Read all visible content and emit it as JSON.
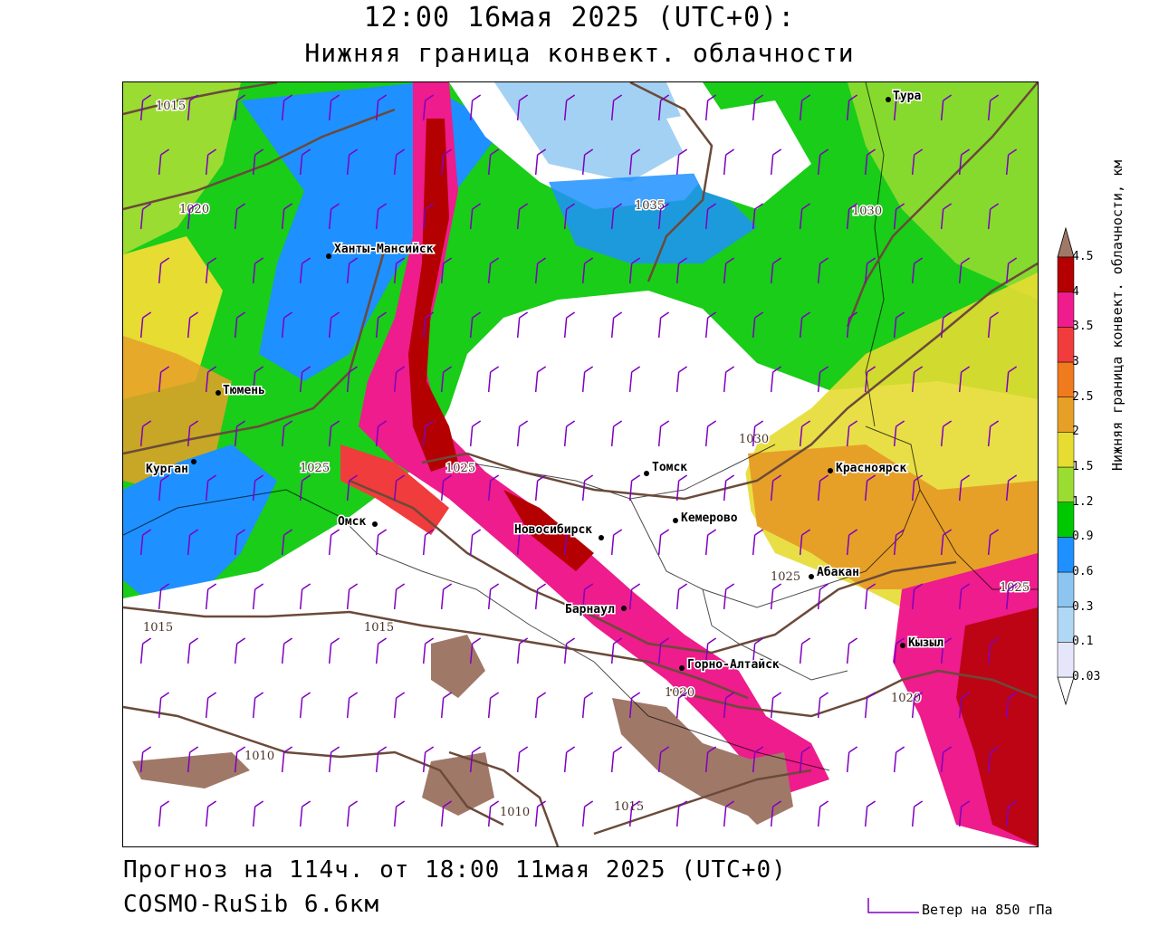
{
  "header": {
    "title": "12:00 16мая 2025 (UTC+0):",
    "subtitle": "Нижняя граница конвект. облачности"
  },
  "footer": {
    "forecast": "Прогноз на 114ч. от 18:00 11мая 2025 (UTC+0)",
    "model": "COSMO-RuSib 6.6км"
  },
  "legend": {
    "title": "Нижняя граница конвект. облачности, км",
    "levels": [
      "0.03",
      "0.1",
      "0.3",
      "0.6",
      "0.9",
      "1.2",
      "1.5",
      "2",
      "2.5",
      "3",
      "3.5",
      "4",
      "4.5"
    ],
    "colors": [
      "#ffffff",
      "#e6e6fa",
      "#b0d8f5",
      "#8cc6f0",
      "#1e90ff",
      "#00c800",
      "#9adc32",
      "#e6dc32",
      "#e6a028",
      "#f07a1e",
      "#f03c3c",
      "#ee1c8c",
      "#b40000",
      "#a07868"
    ]
  },
  "wind_legend": {
    "label": "Ветер на 850 гПа",
    "color": "#8000c0"
  },
  "cities": [
    {
      "name": "Тура"
    },
    {
      "name": "Ханты-Мансийск"
    },
    {
      "name": "Тюмень"
    },
    {
      "name": "Курган"
    },
    {
      "name": "Омск"
    },
    {
      "name": "Томск"
    },
    {
      "name": "Красноярск"
    },
    {
      "name": "Кемерово"
    },
    {
      "name": "Новосибирск"
    },
    {
      "name": "Абакан"
    },
    {
      "name": "Барнаул"
    },
    {
      "name": "Кызыл"
    },
    {
      "name": "Горно-Алтайск"
    }
  ],
  "isobar_labels": [
    "1015",
    "1020",
    "1035",
    "1030",
    "1030",
    "1025",
    "1025",
    "1025",
    "1025",
    "1015",
    "1015",
    "1020",
    "1020",
    "1010",
    "1010",
    "1015"
  ],
  "colors": {
    "isobar": "#6b4a3a",
    "border": "#000000",
    "background": "#ffffff"
  }
}
